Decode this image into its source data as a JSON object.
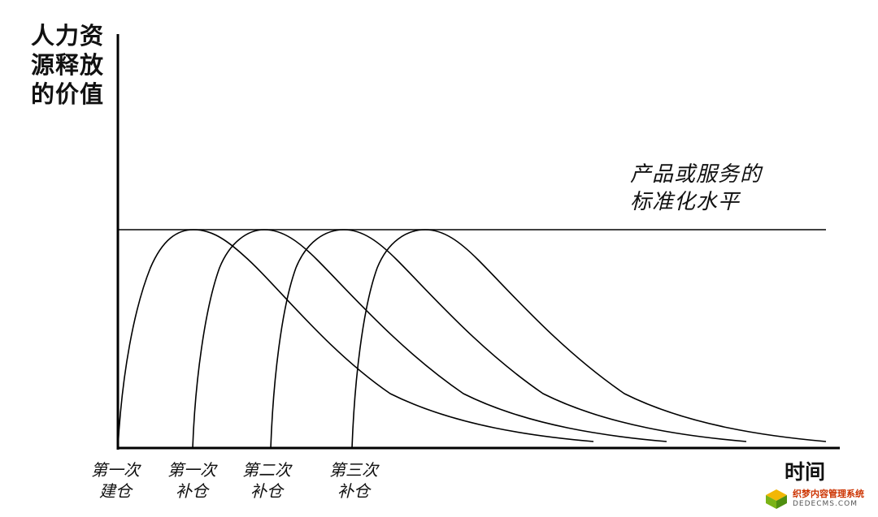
{
  "y_axis_label": [
    "人力资",
    "源释放",
    "的价值"
  ],
  "x_axis_label": "时间",
  "standard_line_label": [
    "产品或服务的",
    "标准化水平"
  ],
  "ticks": [
    {
      "line1": "第一次",
      "line2": "建仓"
    },
    {
      "line1": "第一次",
      "line2": "补仓"
    },
    {
      "line1": "第二次",
      "line2": "补仓"
    },
    {
      "line1": "第三次",
      "line2": "补仓"
    }
  ],
  "watermark": {
    "cn": "织梦内容管理系统",
    "en": "DEDECMS.COM"
  }
}
